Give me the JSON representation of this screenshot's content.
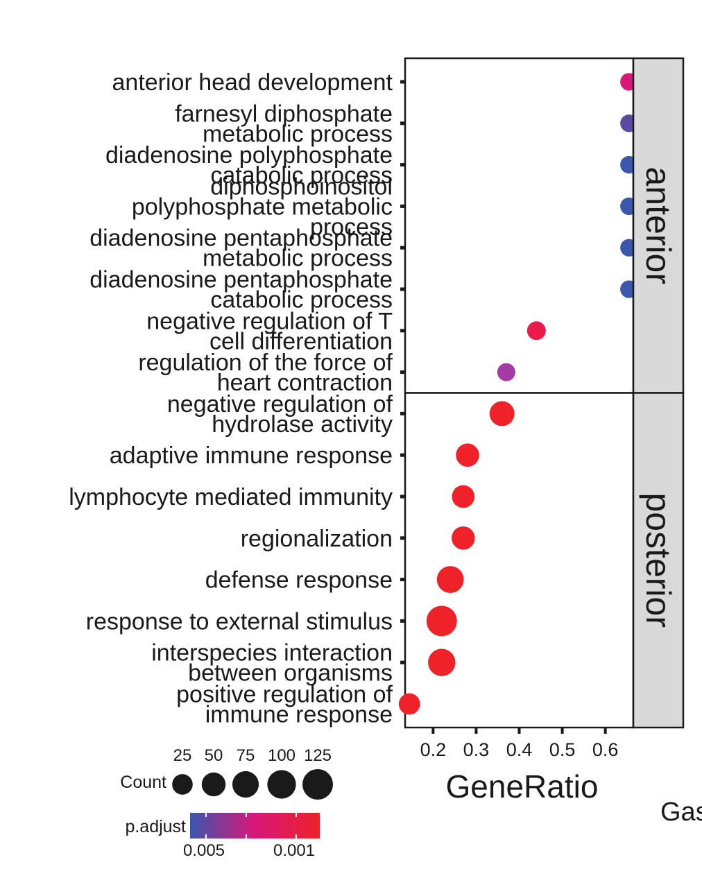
{
  "chart_data": {
    "type": "scatter",
    "xlabel": "GeneRatio",
    "xticks": [
      0.2,
      0.3,
      0.4,
      0.5,
      0.6
    ],
    "xlim": [
      0.135,
      0.665
    ],
    "facets": [
      {
        "name": "anterior",
        "points": [
          {
            "term": [
              "anterior head development"
            ],
            "x": 0.655,
            "count": 10,
            "color": "#d9177a"
          },
          {
            "term": [
              "farnesyl diphosphate",
              "metabolic process"
            ],
            "x": 0.655,
            "count": 10,
            "color": "#5a4aa0"
          },
          {
            "term": [
              "diadenosine polyphosphate",
              "catabolic process"
            ],
            "x": 0.655,
            "count": 10,
            "color": "#3a56ad"
          },
          {
            "term": [
              "diphosphoinositol",
              "polyphosphate metabolic",
              "process"
            ],
            "x": 0.655,
            "count": 10,
            "color": "#3a56ad"
          },
          {
            "term": [
              "diadenosine pentaphosphate",
              "metabolic process"
            ],
            "x": 0.655,
            "count": 10,
            "color": "#3a56ad"
          },
          {
            "term": [
              "diadenosine pentaphosphate",
              "catabolic process"
            ],
            "x": 0.655,
            "count": 10,
            "color": "#3a56ad"
          },
          {
            "term": [
              "negative regulation of T",
              "cell differentiation"
            ],
            "x": 0.44,
            "count": 15,
            "color": "#ea1c4b"
          },
          {
            "term": [
              "regulation of the force of",
              "heart contraction"
            ],
            "x": 0.37,
            "count": 12,
            "color": "#a43aa6"
          }
        ]
      },
      {
        "name": "posterior",
        "points": [
          {
            "term": [
              "negative regulation of",
              "hydrolase activity"
            ],
            "x": 0.36,
            "count": 60,
            "color": "#ee2228"
          },
          {
            "term": [
              "adaptive immune response"
            ],
            "x": 0.28,
            "count": 45,
            "color": "#ee2228"
          },
          {
            "term": [
              "lymphocyte mediated immunity"
            ],
            "x": 0.27,
            "count": 40,
            "color": "#ee2228"
          },
          {
            "term": [
              "regionalization"
            ],
            "x": 0.27,
            "count": 45,
            "color": "#ee2228"
          },
          {
            "term": [
              "defense response"
            ],
            "x": 0.24,
            "count": 80,
            "color": "#ee2228"
          },
          {
            "term": [
              "response to external stimulus"
            ],
            "x": 0.22,
            "count": 125,
            "color": "#ee2228"
          },
          {
            "term": [
              "interspecies interaction",
              "between organisms"
            ],
            "x": 0.22,
            "count": 85,
            "color": "#ee2228"
          },
          {
            "term": [
              "positive regulation of",
              "immune response"
            ],
            "x": 0.145,
            "count": 30,
            "color": "#ee2228"
          }
        ]
      }
    ],
    "legend": {
      "count": {
        "title": "Count",
        "values": [
          25,
          50,
          75,
          100,
          125
        ]
      },
      "padjust": {
        "title": "p.adjust",
        "labels": [
          "0.005",
          "0.001"
        ],
        "colors": [
          "#3a56ad",
          "#d9177a",
          "#ee2228"
        ]
      }
    }
  },
  "cropped_text": "Gas"
}
